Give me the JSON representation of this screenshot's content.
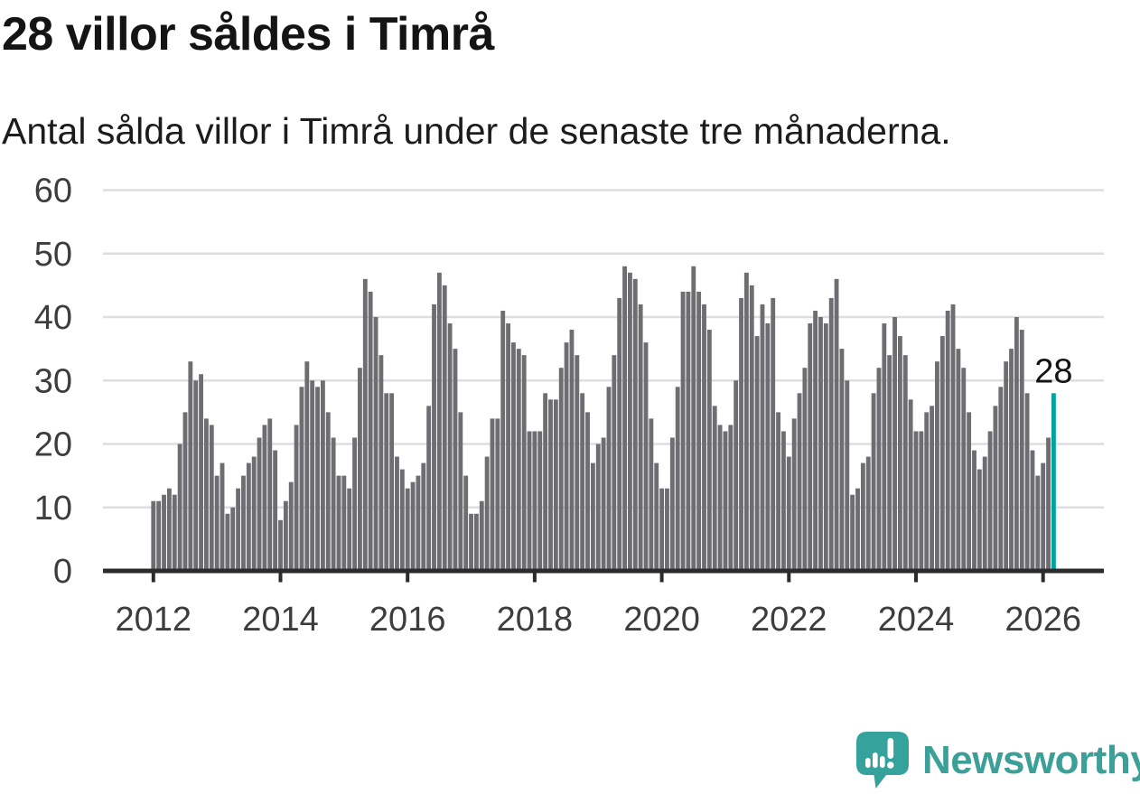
{
  "header": {
    "title": "28 villor såldes i Timrå",
    "subtitle": "Antal sålda villor i Timrå under de senaste tre månaderna."
  },
  "chart_data": {
    "type": "bar",
    "title": "28 villor såldes i Timrå",
    "subtitle": "Antal sålda villor i Timrå under de senaste tre månaderna.",
    "x_unit": "month",
    "x_tick_labels": [
      "2012",
      "2014",
      "2016",
      "2018",
      "2020",
      "2022",
      "2024",
      "2026"
    ],
    "months_per_x_tick": 24,
    "y_ticks": [
      0,
      10,
      20,
      30,
      40,
      50,
      60
    ],
    "ylim": [
      0,
      60
    ],
    "grid": true,
    "legend": false,
    "values": [
      11,
      11,
      12,
      13,
      12,
      20,
      25,
      33,
      30,
      31,
      24,
      23,
      15,
      17,
      9,
      10,
      13,
      15,
      17,
      18,
      21,
      23,
      24,
      19,
      8,
      11,
      14,
      23,
      29,
      33,
      30,
      29,
      30,
      25,
      21,
      15,
      15,
      13,
      21,
      32,
      46,
      44,
      40,
      34,
      28,
      28,
      18,
      16,
      13,
      14,
      15,
      17,
      26,
      42,
      47,
      45,
      39,
      35,
      25,
      15,
      9,
      9,
      11,
      18,
      24,
      24,
      41,
      39,
      36,
      35,
      34,
      22,
      22,
      22,
      28,
      27,
      27,
      32,
      36,
      38,
      34,
      28,
      25,
      17,
      20,
      21,
      29,
      34,
      43,
      48,
      47,
      46,
      42,
      36,
      24,
      17,
      13,
      13,
      21,
      29,
      44,
      44,
      48,
      44,
      42,
      38,
      26,
      23,
      22,
      23,
      30,
      43,
      47,
      45,
      37,
      42,
      39,
      43,
      25,
      22,
      18,
      24,
      28,
      32,
      39,
      41,
      40,
      39,
      43,
      46,
      35,
      30,
      12,
      13,
      17,
      18,
      28,
      32,
      39,
      34,
      40,
      37,
      34,
      27,
      22,
      22,
      25,
      26,
      33,
      37,
      41,
      42,
      35,
      32,
      25,
      19,
      16,
      18,
      22,
      26,
      29,
      33,
      35,
      40,
      38,
      28,
      19,
      15,
      17,
      21,
      28
    ],
    "highlight_index": 170,
    "annotation": {
      "label": "28"
    },
    "bar_color": "#6e6e72",
    "highlight_color": "#00a49e",
    "grid_color": "#dedede",
    "axis_color": "#2b2b2b",
    "tick_label_color": "#3d3d3d",
    "annotation_color": "#141414"
  },
  "footer": {
    "brand": "Newsworthy"
  }
}
